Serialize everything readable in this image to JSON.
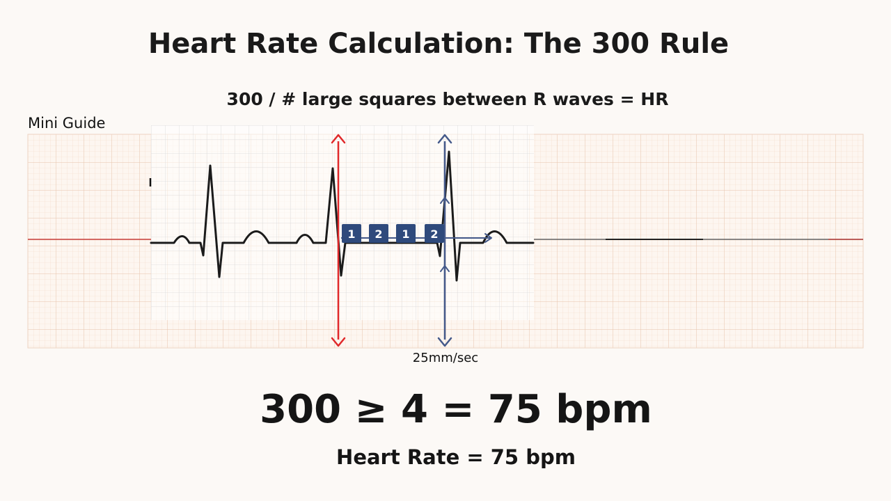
{
  "title": "Heart Rate Calculation: The 300 Rule",
  "subtitle": "300 / # large squares between R waves = HR",
  "guide_label": "Mini Guide",
  "paper_speed": "25mm/sec",
  "square_labels": [
    "1",
    "2",
    "1",
    "2"
  ],
  "formula": "300 ≥ 4 = 75 bpm",
  "result": "Heart Rate = 75 bpm",
  "colors": {
    "background": "#fcf9f6",
    "grid_fine": "#f3d9c6",
    "grid_major": "#e7c3aa",
    "overlay_grid": "#d5d5d5",
    "trace": "#1b1b1b",
    "first_r_marker": "#e0282a",
    "second_r_marker": "#44598a",
    "square_box": "#2f4a7c"
  },
  "icons": [
    "arrow-up-icon",
    "arrow-down-icon"
  ]
}
